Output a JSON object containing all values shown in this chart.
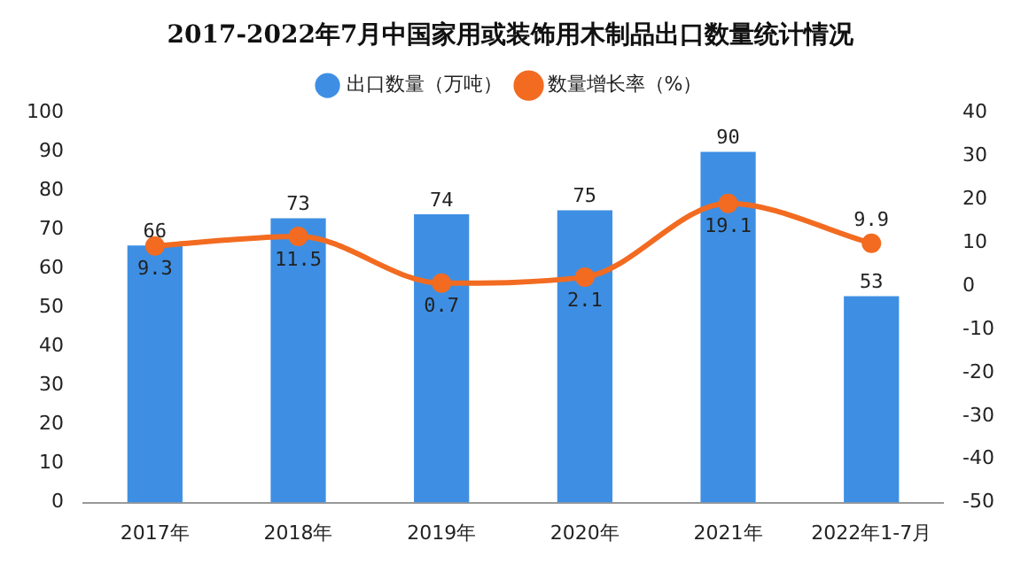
{
  "chart_data": {
    "type": "bar",
    "title": "2017-2022年7月中国家用或装饰用木制品出口数量统计情况",
    "categories": [
      "2017年",
      "2018年",
      "2019年",
      "2020年",
      "2021年",
      "2022年1-7月"
    ],
    "series": [
      {
        "name": "出口数量（万吨）",
        "color": "#3e8fe3",
        "values": [
          66,
          73,
          74,
          75,
          90,
          53
        ]
      },
      {
        "name": "数量增长率（%）",
        "type": "line",
        "axis": "y2",
        "color": "#f26b21",
        "values": [
          9.3,
          11.5,
          0.7,
          2.1,
          19.1,
          9.9
        ]
      }
    ],
    "ylim": [
      0,
      100
    ],
    "yticks": [
      0,
      10,
      20,
      30,
      40,
      50,
      60,
      70,
      80,
      90,
      100
    ],
    "y2lim": [
      -50,
      40
    ],
    "y2ticks": [
      -50,
      -40,
      -30,
      -20,
      -10,
      0,
      10,
      20,
      30,
      40
    ],
    "legend": "top",
    "marker": "circle",
    "line_style": "solid",
    "data_labels": true,
    "grid": false
  }
}
